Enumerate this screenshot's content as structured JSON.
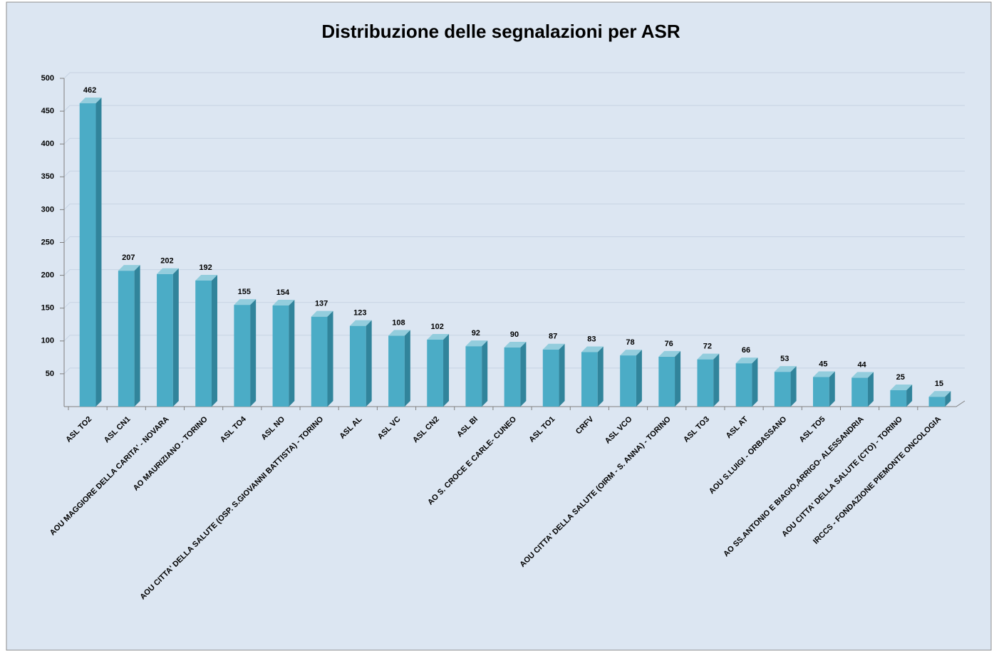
{
  "chart_data": {
    "type": "bar3d",
    "title": "Distribuzione delle segnalazioni per ASR",
    "categories": [
      "ASL TO2",
      "ASL CN1",
      "AOU MAGGIORE DELLA CARITA' - NOVARA",
      "AO MAURIZIANO - TORINO",
      "ASL TO4",
      "ASL NO",
      "AOU CITTA' DELLA SALUTE (OSP. S.GIOVANNI BATTISTA) - TORINO",
      "ASL AL",
      "ASL VC",
      "ASL CN2",
      "ASL BI",
      "AO S. CROCE E CARLE- CUNEO",
      "ASL TO1",
      "CRFV",
      "ASL VCO",
      "AOU CITTA' DELLA SALUTE (OIRM - S. ANNA) - TORINO",
      "ASL TO3",
      "ASL AT",
      "AOU S.LUIGI - ORBASSANO",
      "ASL TO5",
      "AO SS.ANTONIO E BIAGIO,ARRIGO- ALESSANDRIA",
      "AOU CITTA' DELLA SALUTE (CTO) - TORINO",
      "IRCCS - FONDAZIONE PIEMONTE ONCOLOGIA"
    ],
    "values": [
      462,
      207,
      202,
      192,
      155,
      154,
      137,
      123,
      108,
      102,
      92,
      90,
      87,
      83,
      78,
      76,
      72,
      66,
      53,
      45,
      44,
      25,
      15
    ],
    "color": "#4bacc6",
    "ylim": [
      0,
      500
    ],
    "yticks": [
      50,
      100,
      150,
      200,
      250,
      300,
      350,
      400,
      450,
      500
    ],
    "grid": true
  }
}
